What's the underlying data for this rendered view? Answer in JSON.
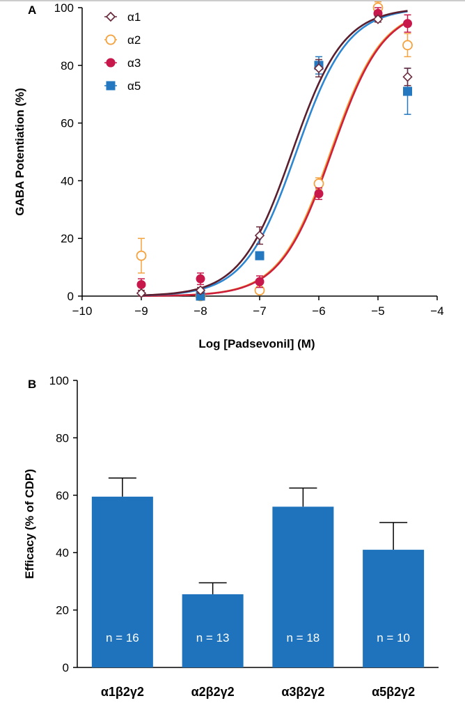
{
  "colors": {
    "a1": "#6b2a3c",
    "a2": "#f4a340",
    "a3": "#c8174a",
    "a5": "#2378c0",
    "curve_a1": "#5a1f2e",
    "curve_a2": "#f4a340",
    "curve_a3": "#cc1f3c",
    "curve_a5": "#2d86d1",
    "bar": "#1f73bd",
    "axis": "#000000"
  },
  "chart_data": [
    {
      "panel": "A",
      "type": "scatter",
      "xlabel": "Log [Padsevonil] (M)",
      "ylabel": "GABA Potentiation (%)",
      "xlim": [
        -10,
        -4
      ],
      "ylim": [
        0,
        100
      ],
      "xticks": [
        -10,
        -9,
        -8,
        -7,
        -6,
        -5,
        -4
      ],
      "xtick_labels": [
        "−10",
        "−9",
        "−8",
        "−7",
        "−6",
        "−5",
        "−4"
      ],
      "yticks": [
        0,
        20,
        40,
        60,
        80,
        100
      ],
      "ytick_labels": [
        "0",
        "20",
        "40",
        "60",
        "80",
        "100"
      ],
      "legend_position": "top-left",
      "series": [
        {
          "name": "α1",
          "key": "a1",
          "marker": "diamond-open",
          "x": [
            -9,
            -8,
            -7,
            -6,
            -5,
            -4.5
          ],
          "y": [
            1,
            2,
            21,
            79,
            96,
            76
          ],
          "err": [
            1,
            1,
            3,
            3,
            1,
            3
          ],
          "curve": {
            "bottom": 0,
            "top": 100,
            "logEC50": -6.45,
            "hill": 1
          }
        },
        {
          "name": "α2",
          "key": "a2",
          "marker": "circle-open",
          "x": [
            -9,
            -8,
            -7,
            -6,
            -5,
            -4.5
          ],
          "y": [
            14,
            0,
            2,
            39,
            100,
            87
          ],
          "err": [
            6,
            1,
            1,
            2,
            2,
            4
          ],
          "curve": {
            "bottom": 0,
            "top": 100,
            "logEC50": -5.8,
            "hill": 1
          }
        },
        {
          "name": "α3",
          "key": "a3",
          "marker": "circle-filled",
          "x": [
            -9,
            -8,
            -7,
            -6,
            -5,
            -4.5
          ],
          "y": [
            4,
            6,
            5,
            35.5,
            98,
            94.5
          ],
          "err": [
            2,
            2,
            2,
            2,
            2,
            3
          ],
          "curve": {
            "bottom": 0,
            "top": 100,
            "logEC50": -5.78,
            "hill": 1
          }
        },
        {
          "name": "α5",
          "key": "a5",
          "marker": "square-filled",
          "x": [
            -8,
            -7,
            -6,
            -4.5
          ],
          "y": [
            0,
            14,
            80,
            71
          ],
          "err": [
            1,
            1,
            3,
            8
          ],
          "curve": {
            "bottom": 0,
            "top": 100,
            "logEC50": -6.38,
            "hill": 1
          }
        }
      ]
    },
    {
      "panel": "B",
      "type": "bar",
      "ylabel": "Efficacy (% of CDP)",
      "ylim": [
        0,
        100
      ],
      "yticks": [
        0,
        20,
        40,
        60,
        80,
        100
      ],
      "ytick_labels": [
        "0",
        "20",
        "40",
        "60",
        "80",
        "100"
      ],
      "categories": [
        "α1β2γ2",
        "α2β2γ2",
        "α3β2γ2",
        "α5β2γ2"
      ],
      "values": [
        59.5,
        25.5,
        56,
        41
      ],
      "errors": [
        6.5,
        4,
        6.5,
        9.5
      ],
      "n_labels": [
        "n = 16",
        "n = 13",
        "n = 18",
        "n = 10"
      ]
    }
  ]
}
